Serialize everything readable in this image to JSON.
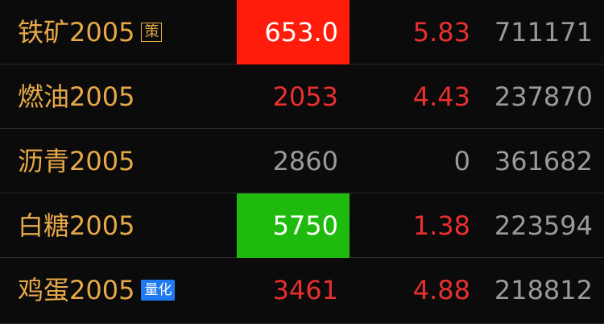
{
  "rows": [
    {
      "name": "铁矿2005",
      "badge": "策",
      "price": "653.0",
      "change": "5.83",
      "volume": "711171"
    },
    {
      "name": "燃油2005",
      "price": "2053",
      "change": "4.43",
      "volume": "237870"
    },
    {
      "name": "沥青2005",
      "price": "2860",
      "change": "0",
      "volume": "361682"
    },
    {
      "name": "白糖2005",
      "price": "5750",
      "change": "1.38",
      "volume": "223594"
    },
    {
      "name": "鸡蛋2005",
      "badge": "量化",
      "price": "3461",
      "change": "4.88",
      "volume": "218812"
    }
  ],
  "colors": {
    "name": "#e7a94a",
    "up": "#ea2f2f",
    "flat": "#9a9a9a",
    "highlight_up_bg": "#ff1c0a",
    "highlight_down_bg": "#1fba0e",
    "badge_quant_bg": "#1f79f0"
  }
}
